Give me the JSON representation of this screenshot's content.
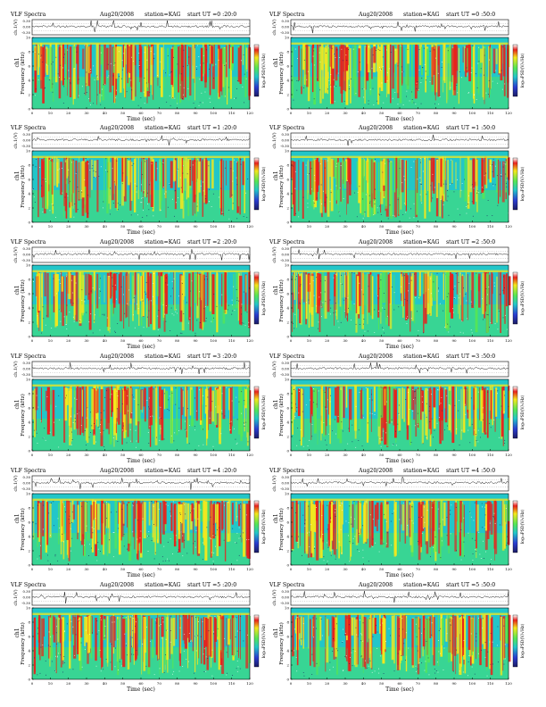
{
  "page": {
    "background": "#ffffff"
  },
  "shared": {
    "header_title": "VLF Spectra",
    "header_date": "Aug20/2008",
    "header_station": "station=KAG",
    "header_ut_prefix": "start  UT",
    "time_axis_label": "Time  (sec)",
    "freq_axis_label": "Frequency  (kHz)",
    "ch1_left_label": "ch1",
    "ch1_top_label": "ch.1(V)",
    "colorbar_label": "log₁₀PSD(V/√Hz)",
    "ch1_ticks": [
      "0.30",
      "0.00",
      "-0.30"
    ],
    "freq_ticks": [
      "0",
      "2",
      "4",
      "6",
      "8",
      "10"
    ],
    "time_ticks": [
      "0",
      "10",
      "20",
      "30",
      "40",
      "50",
      "60",
      "70",
      "80",
      "90",
      "100",
      "110",
      "120"
    ],
    "colors": {
      "spectro_low": "#22c6c9",
      "spectro_mid": "#55e655",
      "spectro_high": "#f4e81c",
      "spectro_peak": "#e8211c",
      "spectro_dark": "#1c1c64"
    }
  },
  "chart_data": [
    {
      "type": "heatmap",
      "panel": "0-20",
      "start_ut": "=0 :20:0",
      "xlim": [
        0,
        120
      ],
      "ylim": [
        0,
        10
      ],
      "ch1_ylim": [
        -0.3,
        0.3
      ],
      "xlabel": "Time  (sec)",
      "ylabel": "Frequency  (kHz)"
    },
    {
      "type": "heatmap",
      "panel": "0-50",
      "start_ut": "=0 :50:0",
      "xlim": [
        0,
        120
      ],
      "ylim": [
        0,
        10
      ],
      "ch1_ylim": [
        -0.3,
        0.3
      ],
      "xlabel": "Time  (sec)",
      "ylabel": "Frequency  (kHz)"
    },
    {
      "type": "heatmap",
      "panel": "1-20",
      "start_ut": "=1 :20:0",
      "xlim": [
        0,
        120
      ],
      "ylim": [
        0,
        10
      ],
      "ch1_ylim": [
        -0.3,
        0.3
      ],
      "xlabel": "Time  (sec)",
      "ylabel": "Frequency  (kHz)"
    },
    {
      "type": "heatmap",
      "panel": "1-50",
      "start_ut": "=1 :50:0",
      "xlim": [
        0,
        120
      ],
      "ylim": [
        0,
        10
      ],
      "ch1_ylim": [
        -0.3,
        0.3
      ],
      "xlabel": "Time  (sec)",
      "ylabel": "Frequency  (kHz)"
    },
    {
      "type": "heatmap",
      "panel": "2-20",
      "start_ut": "=2 :20:0",
      "xlim": [
        0,
        120
      ],
      "ylim": [
        0,
        10
      ],
      "ch1_ylim": [
        -0.3,
        0.3
      ],
      "xlabel": "Time  (sec)",
      "ylabel": "Frequency  (kHz)"
    },
    {
      "type": "heatmap",
      "panel": "2-50",
      "start_ut": "=2 :50:0",
      "xlim": [
        0,
        120
      ],
      "ylim": [
        0,
        10
      ],
      "ch1_ylim": [
        -0.3,
        0.3
      ],
      "xlabel": "Time  (sec)",
      "ylabel": "Frequency  (kHz)"
    },
    {
      "type": "heatmap",
      "panel": "3-20",
      "start_ut": "=3 :20:0",
      "xlim": [
        0,
        120
      ],
      "ylim": [
        0,
        10
      ],
      "ch1_ylim": [
        -0.3,
        0.3
      ],
      "xlabel": "Time  (sec)",
      "ylabel": "Frequency  (kHz)"
    },
    {
      "type": "heatmap",
      "panel": "3-50",
      "start_ut": "=3 :50:0",
      "xlim": [
        0,
        120
      ],
      "ylim": [
        0,
        10
      ],
      "ch1_ylim": [
        -0.3,
        0.3
      ],
      "xlabel": "Time  (sec)",
      "ylabel": "Frequency  (kHz)"
    },
    {
      "type": "heatmap",
      "panel": "4-20",
      "start_ut": "=4 :20:0",
      "xlim": [
        0,
        120
      ],
      "ylim": [
        0,
        10
      ],
      "ch1_ylim": [
        -0.3,
        0.3
      ],
      "xlabel": "Time  (sec)",
      "ylabel": "Frequency  (kHz)"
    },
    {
      "type": "heatmap",
      "panel": "4-50",
      "start_ut": "=4 :50:0",
      "xlim": [
        0,
        120
      ],
      "ylim": [
        0,
        10
      ],
      "ch1_ylim": [
        -0.3,
        0.3
      ],
      "xlabel": "Time  (sec)",
      "ylabel": "Frequency  (kHz)"
    },
    {
      "type": "heatmap",
      "panel": "5-20",
      "start_ut": "=5 :20:0",
      "xlim": [
        0,
        120
      ],
      "ylim": [
        0,
        10
      ],
      "ch1_ylim": [
        -0.3,
        0.3
      ],
      "xlabel": "Time  (sec)",
      "ylabel": "Frequency  (kHz)"
    },
    {
      "type": "heatmap",
      "panel": "5-50",
      "start_ut": "=5 :50:0",
      "xlim": [
        0,
        120
      ],
      "ylim": [
        0,
        10
      ],
      "ch1_ylim": [
        -0.3,
        0.3
      ],
      "xlabel": "Time  (sec)",
      "ylabel": "Frequency  (kHz)"
    }
  ]
}
